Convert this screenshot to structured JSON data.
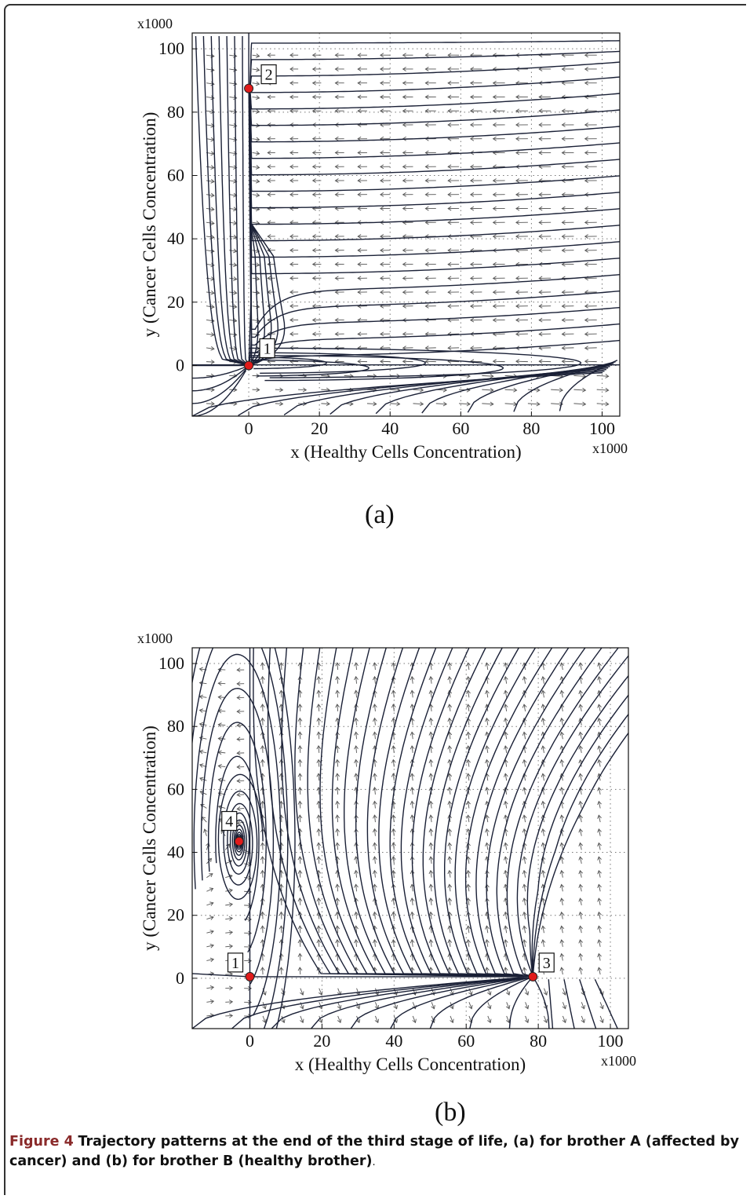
{
  "chart_data": [
    {
      "type": "scatter",
      "panel": "(a)",
      "xlabel": "x (Healthy Cells Concentration)",
      "ylabel": "y (Cancer Cells Concentration)",
      "x_multiplier": "x1000",
      "y_multiplier": "x1000",
      "xlim": [
        -16,
        105
      ],
      "ylim": [
        -16,
        105
      ],
      "xticks": [
        0,
        20,
        40,
        60,
        80,
        100
      ],
      "yticks": [
        0,
        20,
        40,
        60,
        80,
        100
      ],
      "grid": true,
      "equilibria": [
        {
          "label": "1",
          "x": 0,
          "y": 0
        },
        {
          "label": "2",
          "x": 0,
          "y": 87.5
        }
      ],
      "marker_color": "#e11b1b",
      "line_color": "#1a2036"
    },
    {
      "type": "scatter",
      "panel": "(b)",
      "xlabel": "x (Healthy Cells Concentration)",
      "ylabel": "y (Cancer Cells Concentration)",
      "x_multiplier": "x1000",
      "y_multiplier": "x1000",
      "xlim": [
        -16,
        105
      ],
      "ylim": [
        -16,
        105
      ],
      "xticks": [
        0,
        20,
        40,
        60,
        80,
        100
      ],
      "yticks": [
        0,
        20,
        40,
        60,
        80,
        100
      ],
      "grid": true,
      "equilibria": [
        {
          "label": "1",
          "x": 0,
          "y": 0.5
        },
        {
          "label": "3",
          "x": 78.5,
          "y": 0.5
        },
        {
          "label": "4",
          "x": -3,
          "y": 43.5
        }
      ],
      "marker_color": "#e11b1b",
      "line_color": "#1a2036"
    }
  ],
  "caption": {
    "figure_number": "Figure 4",
    "text": "Trajectory patterns at the end of the third stage of life, (a) for brother A (affected by cancer) and (b) for brother B (healthy brother)",
    "end": "."
  }
}
